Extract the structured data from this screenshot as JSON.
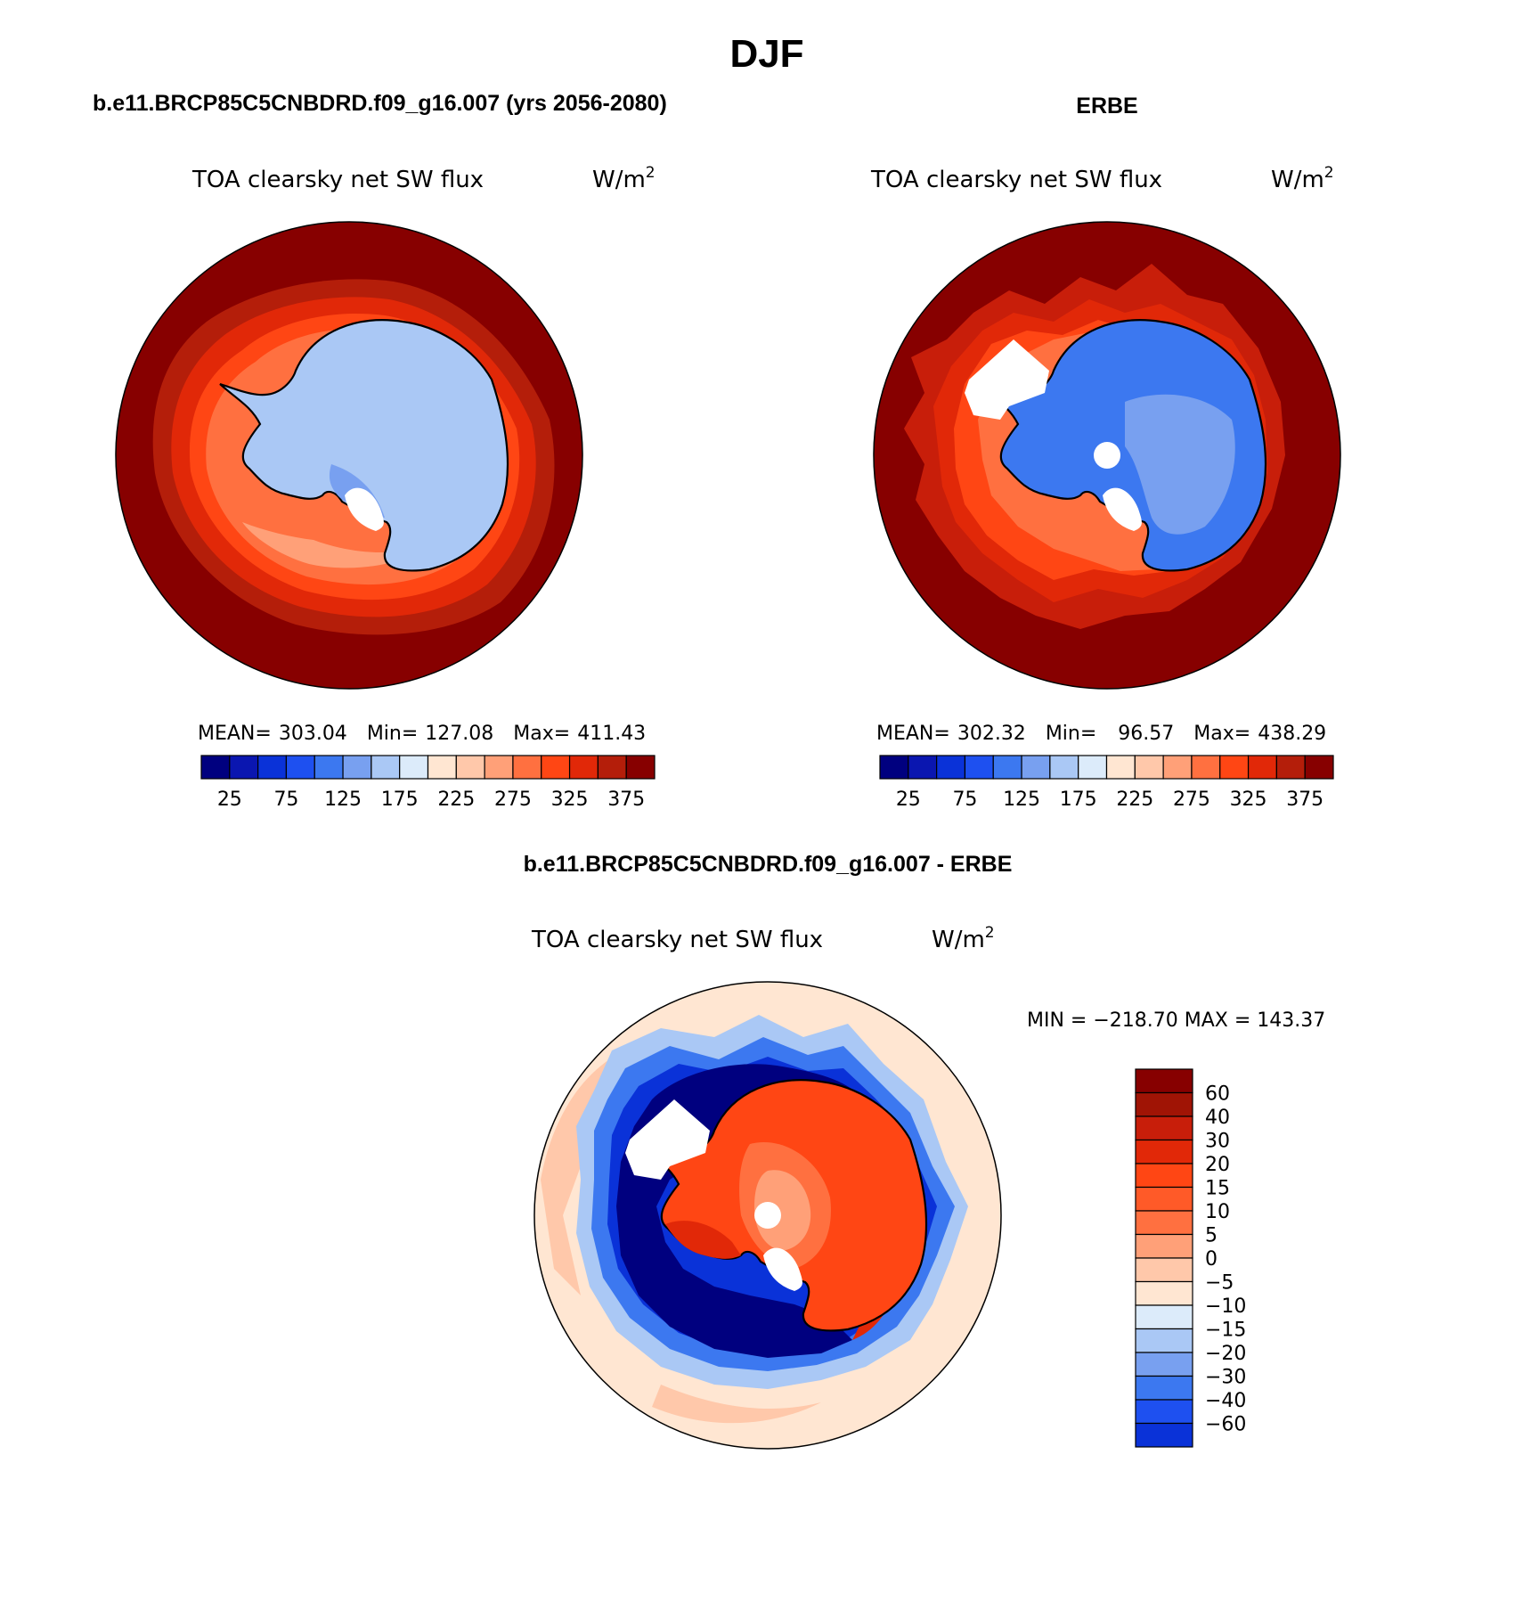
{
  "page_title": "DJF",
  "colors": {
    "scale16": [
      "#00007f",
      "#0a16b0",
      "#0a32d8",
      "#1e50f0",
      "#3c78f0",
      "#78a0f0",
      "#aac8f5",
      "#dcebfa",
      "#ffe6d2",
      "#ffc8aa",
      "#ffa078",
      "#ff7040",
      "#ff4614",
      "#e12808",
      "#b41e0a",
      "#870000"
    ],
    "scale18": [
      "#00007f",
      "#0a16b0",
      "#0a32d8",
      "#1e50f0",
      "#3c78f0",
      "#78a0f0",
      "#aac8f5",
      "#dcebfa",
      "#ffe6d2",
      "#ffc8aa",
      "#ffa078",
      "#ff7040",
      "#ff5a28",
      "#ff4614",
      "#e12808",
      "#c81e0a",
      "#a01405",
      "#870000"
    ],
    "land_light": "#aac8f5",
    "land_erbe": "#3c78f0",
    "land_diff": "#ff4614",
    "ocean_high": "#870000",
    "ocean_diff": "#ffe6d2"
  },
  "chart_data": [
    {
      "type": "heatmap",
      "projection": "south-polar-stereographic",
      "case_title": "b.e11.BRCP85C5CNBDRD.f09_g16.007 (yrs 2056-2080)",
      "variable": "TOA clearsky net SW flux",
      "units": "W/m",
      "units_exp": "2",
      "stats": {
        "mean_label": "MEAN=",
        "mean": "303.04",
        "min_label": "Min=",
        "min": "127.08",
        "max_label": "Max=",
        "max": "411.43"
      },
      "colorbar_ticks": [
        "25",
        "75",
        "125",
        "175",
        "225",
        "275",
        "325",
        "375"
      ],
      "contour_levels": [
        25,
        50,
        75,
        100,
        125,
        150,
        175,
        200,
        225,
        250,
        275,
        300,
        325,
        350,
        375
      ]
    },
    {
      "type": "heatmap",
      "projection": "south-polar-stereographic",
      "case_title": "ERBE",
      "variable": "TOA clearsky net SW flux",
      "units": "W/m",
      "units_exp": "2",
      "stats": {
        "mean_label": "MEAN=",
        "mean": "302.32",
        "min_label": "Min=",
        "min": "96.57",
        "max_label": "Max=",
        "max": "438.29"
      },
      "colorbar_ticks": [
        "25",
        "75",
        "125",
        "175",
        "225",
        "275",
        "325",
        "375"
      ],
      "contour_levels": [
        25,
        50,
        75,
        100,
        125,
        150,
        175,
        200,
        225,
        250,
        275,
        300,
        325,
        350,
        375
      ]
    },
    {
      "type": "heatmap",
      "projection": "south-polar-stereographic",
      "case_title": "b.e11.BRCP85C5CNBDRD.f09_g16.007 - ERBE",
      "variable": "TOA clearsky net SW flux",
      "units": "W/m",
      "units_exp": "2",
      "minmax_text": "MIN = −218.70 MAX = 143.37",
      "colorbar_ticks": [
        "60",
        "40",
        "30",
        "20",
        "15",
        "10",
        "5",
        "0",
        "−5",
        "−10",
        "−15",
        "−20",
        "−30",
        "−40",
        "−60"
      ],
      "contour_levels": [
        -60,
        -40,
        -30,
        -20,
        -15,
        -10,
        -5,
        0,
        5,
        10,
        15,
        20,
        30,
        40,
        60
      ]
    }
  ]
}
